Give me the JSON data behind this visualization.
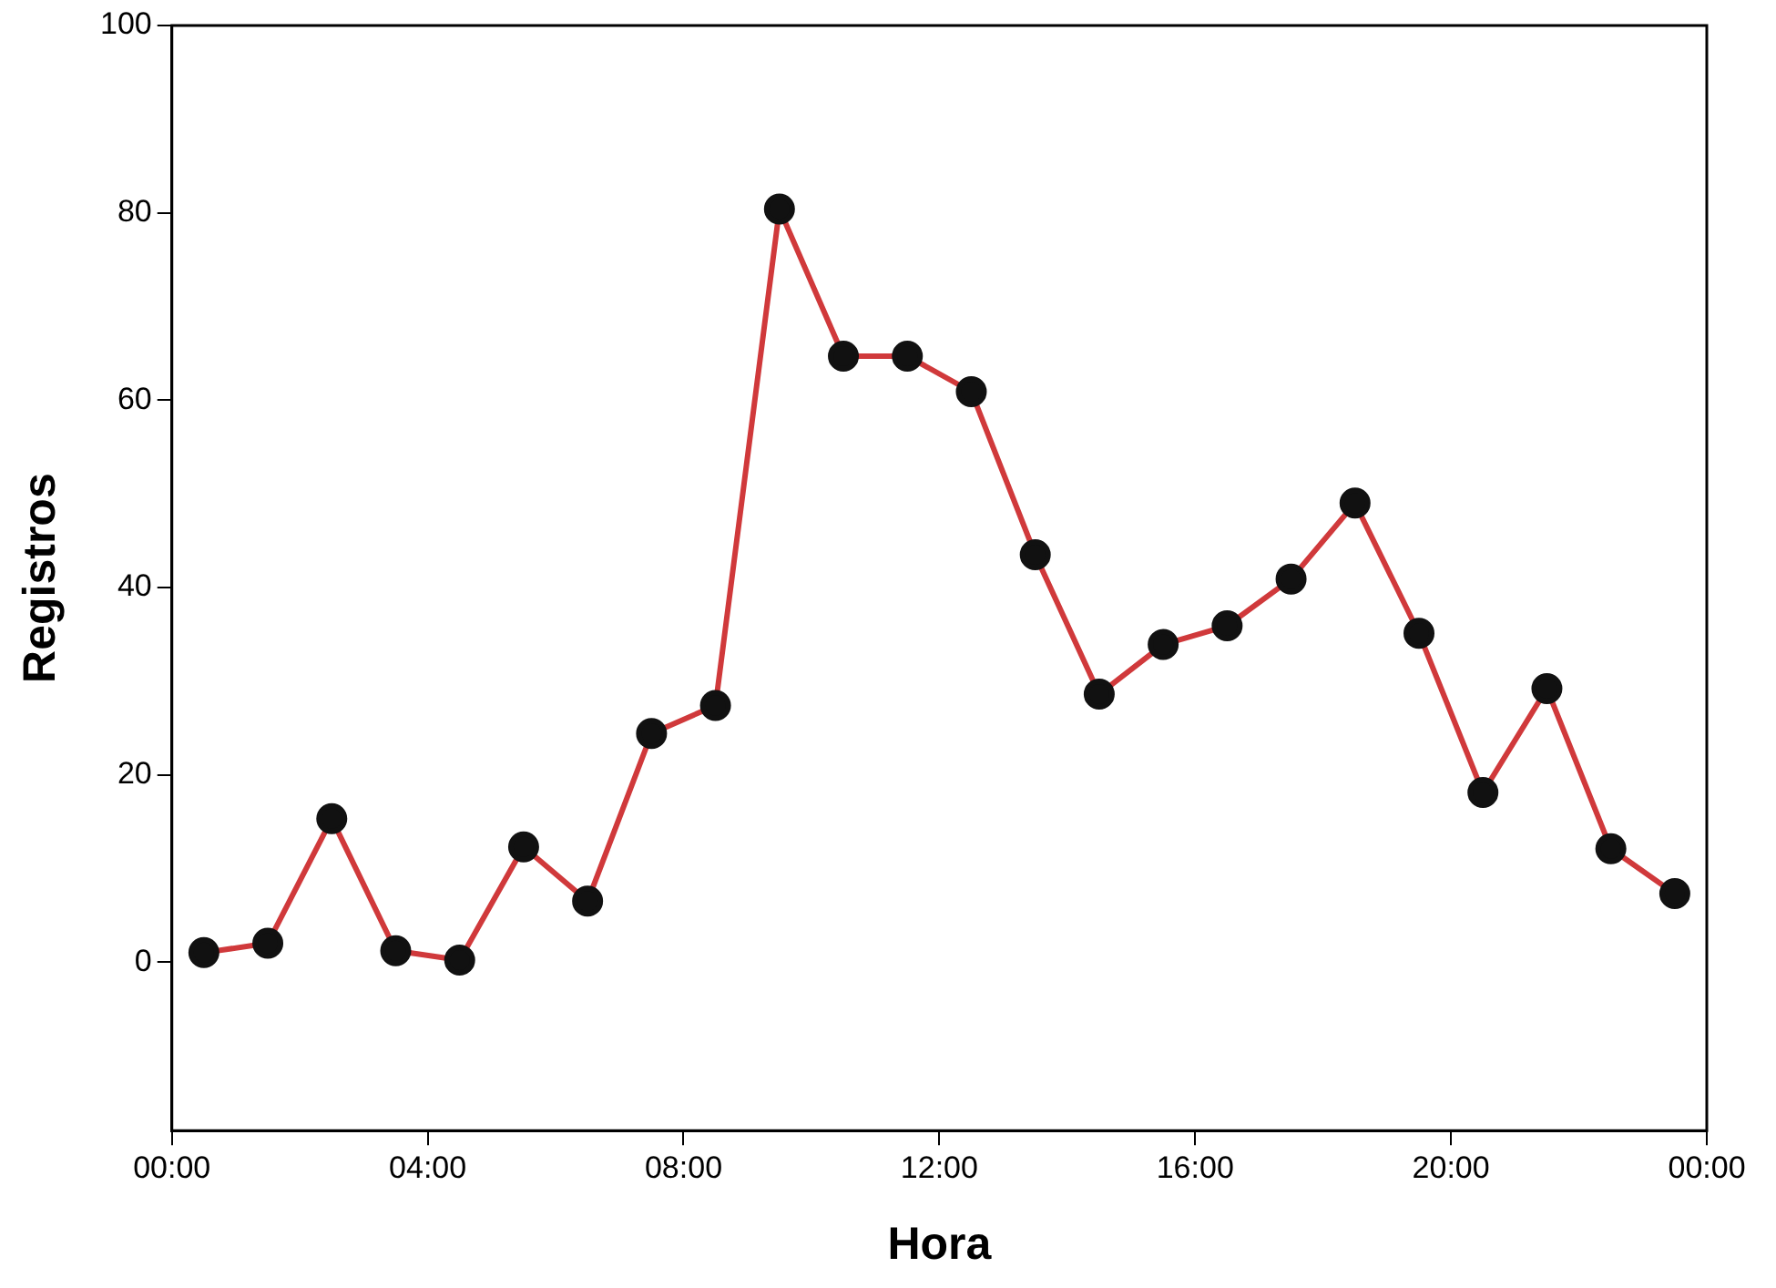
{
  "chart_data": {
    "type": "line",
    "xlabel": "Hora",
    "ylabel": "Registros",
    "x": [
      0.5,
      1.5,
      2.5,
      3.5,
      4.5,
      5.5,
      6.5,
      7.5,
      8.5,
      9.5,
      10.5,
      11.5,
      12.5,
      13.5,
      14.5,
      15.5,
      16.5,
      17.5,
      18.5,
      19.5,
      20.5,
      21.5,
      22.5,
      23.5
    ],
    "series": [
      {
        "color": "#d0393b",
        "values": [
          1,
          2,
          15.3,
          1.2,
          0.2,
          12.3,
          6.5,
          24.4,
          27.4,
          80.4,
          64.7,
          64.7,
          60.9,
          43.5,
          28.6,
          33.9,
          35.9,
          40.9,
          49,
          35.1,
          18.1,
          29.2,
          12.1,
          7.3
        ]
      }
    ],
    "xlim": [
      0,
      24
    ],
    "xticks": [
      {
        "value": 0,
        "label": "00:00"
      },
      {
        "value": 4,
        "label": "04:00"
      },
      {
        "value": 8,
        "label": "08:00"
      },
      {
        "value": 12,
        "label": "12:00"
      },
      {
        "value": 16,
        "label": "16:00"
      },
      {
        "value": 20,
        "label": "20:00"
      },
      {
        "value": 24,
        "label": "00:00"
      }
    ],
    "ylim": [
      -18,
      100
    ],
    "yticks": [
      0,
      20,
      40,
      60,
      80,
      100
    ],
    "grid": false,
    "legend": false,
    "marker": "circle",
    "line_style": "solid"
  }
}
